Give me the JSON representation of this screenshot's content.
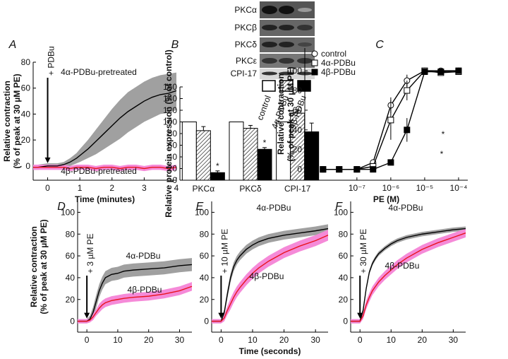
{
  "chart_data": [
    {
      "label": "A",
      "type": "line",
      "ylabel": [
        "Relative contraction",
        "(% of peak at 30 µM PE)"
      ],
      "xlabel": "Time (minutes)",
      "xlim": [
        -0.45,
        4
      ],
      "xticks": [
        0,
        1,
        2,
        3,
        4
      ],
      "ylim": [
        -11,
        80
      ],
      "yticks": [
        0,
        20,
        40,
        60,
        80
      ],
      "x": [
        -0.45,
        -0.3,
        0,
        0.3,
        0.5,
        0.7,
        0.9,
        1.0,
        1.25,
        1.5,
        1.75,
        2,
        2.25,
        2.5,
        2.75,
        3,
        3.25,
        3.5,
        3.75,
        4
      ],
      "series": [
        {
          "name": "4α-PDBu-pretreated",
          "color": "#000000",
          "band_color": "#a0a0a0",
          "values": [
            -1,
            -1,
            0,
            0,
            1,
            3,
            6,
            8,
            13,
            19,
            25,
            31,
            37,
            42,
            46,
            50,
            53,
            55,
            56,
            58
          ],
          "lower": [
            -3,
            -3,
            -2,
            -2,
            -1,
            0,
            2,
            3,
            6,
            9,
            13,
            17,
            21,
            26,
            30,
            34,
            37,
            40,
            41,
            43
          ],
          "upper": [
            1,
            1,
            2,
            2,
            3,
            6,
            10,
            13,
            20,
            28,
            36,
            44,
            51,
            57,
            61,
            65,
            68,
            70,
            71,
            72
          ]
        },
        {
          "name": "4β-PDBu-pretreated",
          "color": "#e8141e",
          "band_color": "#f58ad8",
          "values": [
            -1,
            -1,
            -1,
            -1,
            -1,
            -2,
            -1,
            -1,
            -1,
            -2,
            -1,
            -1,
            -2,
            -1,
            -1,
            -2,
            -1,
            -1,
            -2,
            -1
          ],
          "lower": [
            -3,
            -3,
            -3,
            -3,
            -3,
            -4,
            -3,
            -3,
            -3,
            -4,
            -3,
            -3,
            -4,
            -3,
            -3,
            -4,
            -3,
            -3,
            -4,
            -3
          ],
          "upper": [
            1,
            1,
            1,
            1,
            1,
            0,
            1,
            1,
            1,
            0,
            1,
            1,
            0,
            1,
            1,
            0,
            1,
            1,
            0,
            1
          ]
        }
      ],
      "annotations": [
        "+ PDBu"
      ]
    },
    {
      "label": "B",
      "type": "bar",
      "ylabel": [
        "Relative protein expression (% of control)"
      ],
      "blot_labels": [
        "PKCα",
        "PKCβ",
        "PKCδ",
        "PKCε",
        "CPI-17"
      ],
      "categories": [
        "PKCα",
        "PKCδ",
        "CPI-17"
      ],
      "ylim": [
        0,
        160
      ],
      "yticks": [
        0,
        20,
        40,
        60,
        80,
        100,
        120,
        140,
        160
      ],
      "series": [
        {
          "name": "control",
          "color": "#ffffff",
          "values": [
            100,
            100,
            100
          ],
          "errors": [
            0,
            0,
            0
          ]
        },
        {
          "name": "4α-PDBu",
          "color": "#ffffff",
          "hatch": true,
          "values": [
            85,
            89,
            115
          ],
          "errors": [
            7,
            5,
            6
          ]
        },
        {
          "name": "4β-PDBu",
          "color": "#000000",
          "values": [
            13,
            53,
            83
          ],
          "errors": [
            3,
            3,
            15
          ]
        }
      ],
      "annotations": [
        "*",
        "*"
      ]
    },
    {
      "label": "C",
      "type": "line",
      "log_x": true,
      "ylabel": [
        "Relative contraction",
        "(% of peak at 30 µM PE)"
      ],
      "xlabel": "PE (M)",
      "xlim": [
        2.9e-09,
        0.000187
      ],
      "xticks": [
        {
          "value": 1e-07,
          "label": "10⁻⁷"
        },
        {
          "value": 1e-06,
          "label": "10⁻⁶"
        },
        {
          "value": 1e-05,
          "label": "10⁻⁵"
        },
        {
          "value": 0.0001,
          "label": "10⁻⁴"
        }
      ],
      "ylim": [
        -11,
        123
      ],
      "yticks": [
        0,
        20,
        40,
        60,
        80,
        100
      ],
      "legend": "upper left",
      "x": [
        1e-08,
        3e-08,
        1e-07,
        3e-07,
        1e-06,
        3e-06,
        1e-05,
        3e-05,
        0.0001
      ],
      "series": [
        {
          "name": "control",
          "color": "#000000",
          "marker": "circle",
          "fill": "#ffffff",
          "values": [
            0,
            0,
            0,
            7,
            65,
            90,
            100,
            100,
            100
          ],
          "errors": [
            0,
            0,
            0,
            3,
            8,
            6,
            2,
            2,
            2
          ]
        },
        {
          "name": "4α-PDBu",
          "color": "#000000",
          "marker": "square",
          "fill": "#ffffff",
          "values": [
            0,
            0,
            0,
            3,
            50,
            80,
            100,
            98,
            99
          ],
          "errors": [
            0,
            0,
            0,
            2,
            20,
            10,
            3,
            3,
            2
          ]
        },
        {
          "name": "4β-PDBu",
          "color": "#000000",
          "marker": "square",
          "fill": "#000000",
          "values": [
            0,
            0,
            0,
            0,
            7,
            40,
            99,
            99,
            100
          ],
          "errors": [
            0,
            0,
            0,
            0,
            3,
            12,
            3,
            2,
            2
          ]
        }
      ],
      "annotations": [
        "*",
        "*"
      ]
    },
    {
      "label": "D",
      "type": "line",
      "ylabel": [
        "Relative contraction",
        "(% of peak at 30 µM PE)"
      ],
      "xlim": [
        -3,
        34
      ],
      "xticks": [
        0,
        10,
        20,
        30
      ],
      "ylim": [
        -10,
        110
      ],
      "yticks": [
        0,
        20,
        40,
        60,
        80,
        100
      ],
      "x": [
        -3,
        -2,
        0,
        1,
        2,
        3,
        4,
        5,
        6,
        8,
        10,
        12,
        15,
        20,
        25,
        30,
        34
      ],
      "series": [
        {
          "name": "4α-PDBu",
          "color": "#000000",
          "band_color": "#a0a0a0",
          "values": [
            0,
            0,
            0,
            2,
            8,
            18,
            28,
            35,
            40,
            43,
            44,
            46,
            47,
            48,
            49,
            51,
            52
          ],
          "lower": [
            -2,
            -2,
            -2,
            -1,
            3,
            12,
            22,
            29,
            34,
            37,
            38,
            40,
            41,
            42,
            43,
            45,
            46
          ],
          "upper": [
            2,
            2,
            2,
            5,
            13,
            24,
            34,
            41,
            46,
            49,
            50,
            52,
            53,
            54,
            55,
            57,
            58
          ]
        },
        {
          "name": "4β-PDBu",
          "color": "#e8141e",
          "band_color": "#f58ad8",
          "values": [
            0,
            0,
            0,
            1,
            4,
            8,
            12,
            15,
            17,
            19,
            20,
            21,
            22,
            23,
            25,
            28,
            32
          ],
          "lower": [
            -2,
            -2,
            -2,
            -1,
            1,
            5,
            8,
            11,
            13,
            15,
            16,
            17,
            18,
            19,
            21,
            24,
            28
          ],
          "upper": [
            2,
            2,
            2,
            3,
            7,
            11,
            16,
            19,
            21,
            23,
            24,
            25,
            26,
            27,
            29,
            32,
            36
          ]
        }
      ],
      "annotations": [
        "+ 3 µM PE"
      ]
    },
    {
      "label": "E",
      "type": "line",
      "xlabel": "Time (seconds)",
      "xlim": [
        -3,
        34
      ],
      "xticks": [
        0,
        10,
        20,
        30
      ],
      "ylim": [
        -10,
        110
      ],
      "yticks": [
        0,
        20,
        40,
        60,
        80,
        100
      ],
      "x": [
        -3,
        -2,
        0,
        1,
        2,
        3,
        4,
        5,
        6,
        8,
        10,
        12,
        15,
        20,
        25,
        30,
        34
      ],
      "series": [
        {
          "name": "4α-PDBu",
          "color": "#000000",
          "band_color": "#a0a0a0",
          "values": [
            0,
            0,
            0,
            8,
            25,
            40,
            50,
            56,
            60,
            66,
            70,
            73,
            76,
            79,
            81,
            83,
            85
          ],
          "lower": [
            -2,
            -2,
            -2,
            5,
            21,
            36,
            46,
            52,
            56,
            62,
            66,
            69,
            72,
            75,
            77,
            79,
            81
          ],
          "upper": [
            2,
            2,
            2,
            11,
            29,
            44,
            54,
            60,
            64,
            70,
            74,
            77,
            80,
            83,
            85,
            87,
            89
          ]
        },
        {
          "name": "4β-PDBu",
          "color": "#e8141e",
          "band_color": "#f58ad8",
          "values": [
            0,
            0,
            0,
            3,
            10,
            16,
            22,
            27,
            31,
            38,
            44,
            49,
            55,
            63,
            69,
            74,
            79
          ],
          "lower": [
            -2,
            -2,
            -2,
            0,
            6,
            11,
            17,
            22,
            26,
            33,
            39,
            44,
            50,
            58,
            64,
            69,
            74
          ],
          "upper": [
            2,
            2,
            2,
            6,
            14,
            21,
            27,
            32,
            36,
            43,
            49,
            54,
            60,
            68,
            74,
            79,
            84
          ]
        }
      ],
      "annotations": [
        "+ 10 µM PE"
      ]
    },
    {
      "label": "F",
      "type": "line",
      "xlim": [
        -3,
        34
      ],
      "xticks": [
        0,
        10,
        20,
        30
      ],
      "ylim": [
        -10,
        110
      ],
      "yticks": [
        0,
        20,
        40,
        60,
        80,
        100
      ],
      "x": [
        -3,
        -2,
        0,
        1,
        2,
        3,
        4,
        5,
        6,
        8,
        10,
        12,
        15,
        20,
        25,
        30,
        34
      ],
      "series": [
        {
          "name": "4α-PDBu",
          "color": "#000000",
          "band_color": "#a0a0a0",
          "values": [
            0,
            0,
            0,
            10,
            30,
            45,
            53,
            58,
            62,
            67,
            71,
            74,
            77,
            80,
            82,
            84,
            85
          ],
          "lower": [
            -2,
            -2,
            -2,
            8,
            28,
            43,
            51,
            56,
            60,
            65,
            69,
            72,
            75,
            78,
            80,
            82,
            83
          ],
          "upper": [
            2,
            2,
            2,
            12,
            32,
            47,
            55,
            60,
            64,
            69,
            73,
            76,
            79,
            82,
            84,
            86,
            87
          ]
        },
        {
          "name": "4β-PDBu",
          "color": "#e8141e",
          "band_color": "#f58ad8",
          "values": [
            0,
            0,
            0,
            5,
            15,
            22,
            28,
            32,
            36,
            42,
            47,
            52,
            58,
            66,
            72,
            77,
            81
          ],
          "lower": [
            -2,
            -2,
            -2,
            2,
            11,
            18,
            24,
            28,
            32,
            38,
            43,
            48,
            54,
            62,
            68,
            73,
            77
          ],
          "upper": [
            2,
            2,
            2,
            8,
            19,
            26,
            32,
            36,
            40,
            46,
            51,
            56,
            62,
            70,
            76,
            81,
            85
          ]
        }
      ],
      "annotations": [
        "+ 30 µM PE"
      ]
    }
  ]
}
